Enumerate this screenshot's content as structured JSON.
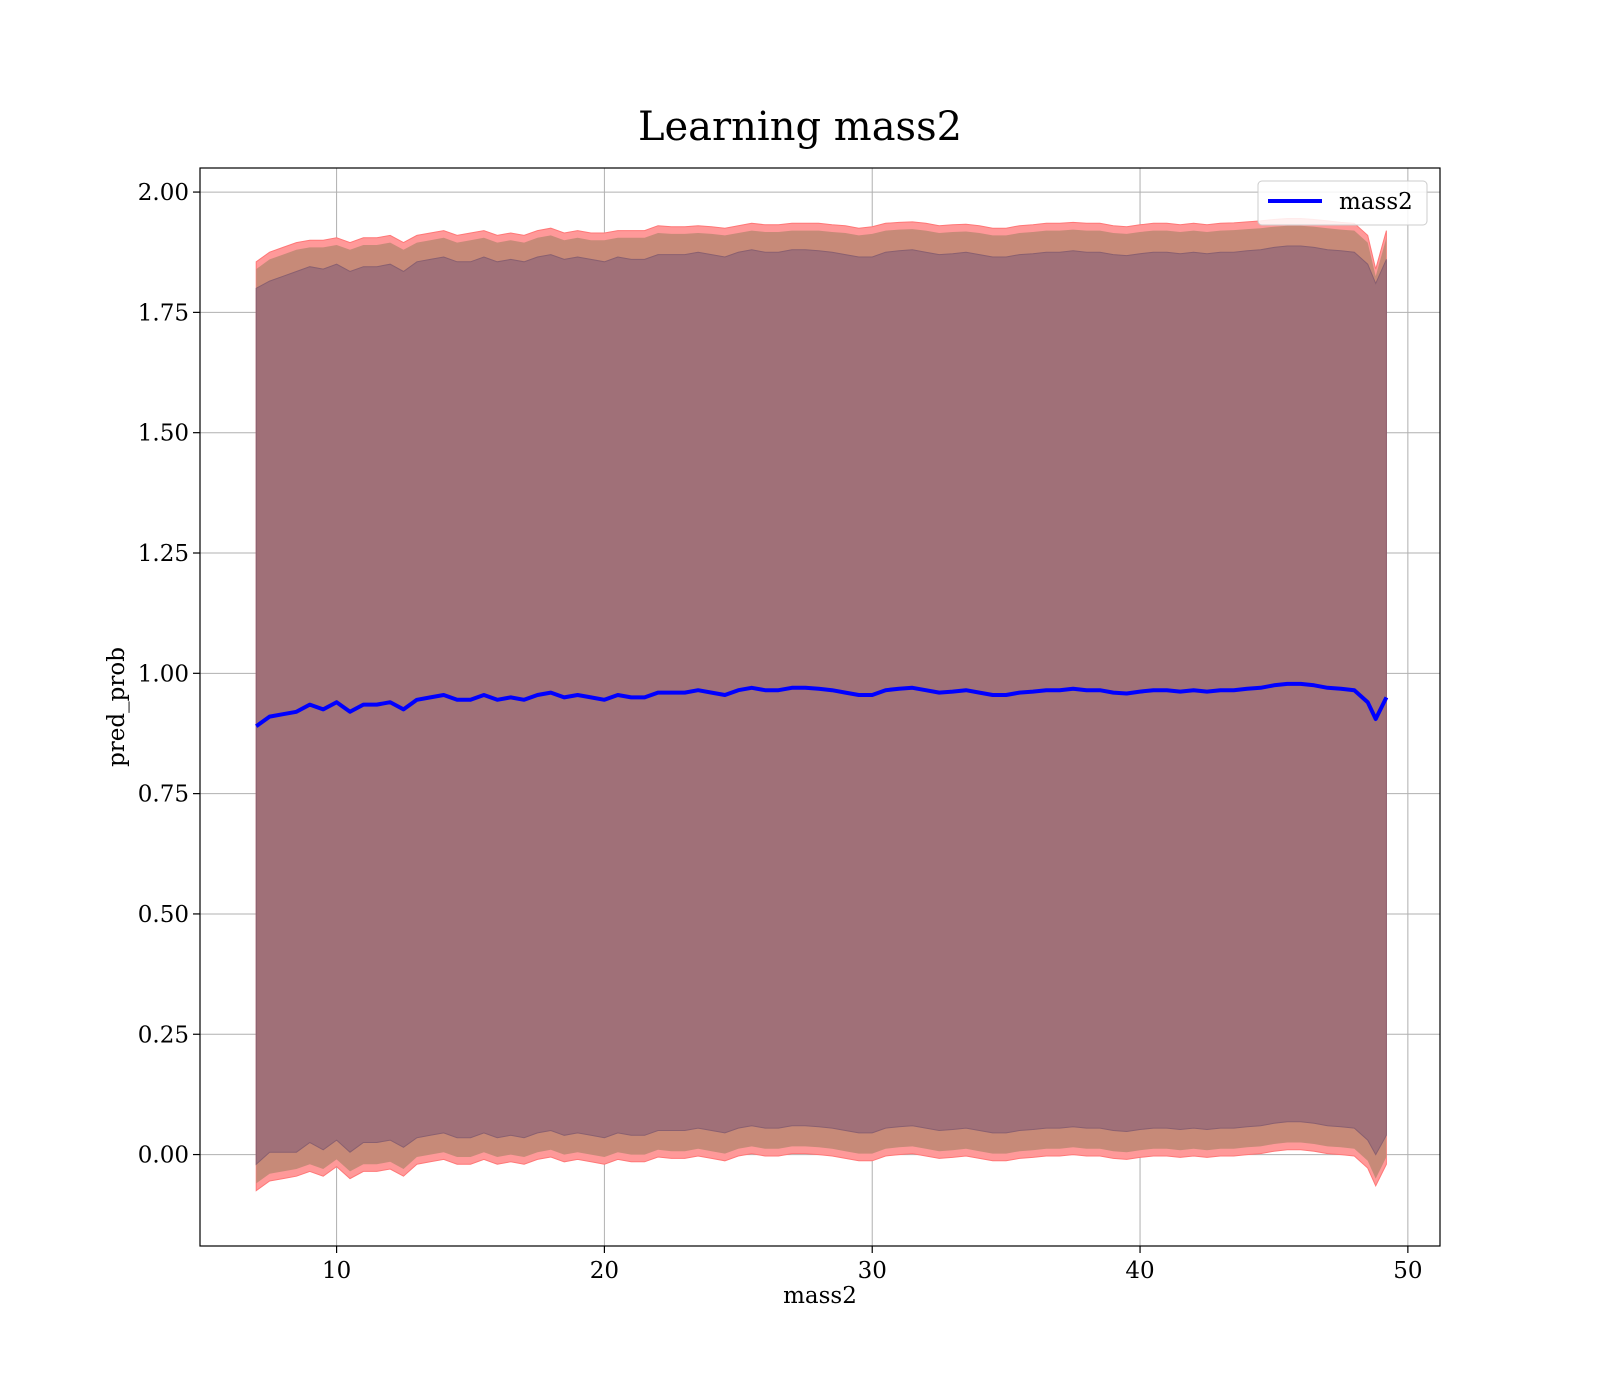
{
  "chart_data": {
    "type": "line",
    "title": "Learning mass2",
    "xlabel": "mass2",
    "ylabel": "pred_prob",
    "xlim": [
      4.9,
      51.2
    ],
    "ylim": [
      -0.19,
      2.05
    ],
    "xticks": [
      10,
      20,
      30,
      40,
      50
    ],
    "xtick_labels": [
      "10",
      "20",
      "30",
      "40",
      "50"
    ],
    "yticks": [
      0.0,
      0.25,
      0.5,
      0.75,
      1.0,
      1.25,
      1.5,
      1.75,
      2.0
    ],
    "ytick_labels": [
      "0.00",
      "0.25",
      "0.50",
      "0.75",
      "1.00",
      "1.25",
      "1.50",
      "1.75",
      "2.00"
    ],
    "grid": true,
    "legend_position": "top-right",
    "series": [
      {
        "name": "mass2",
        "color": "#0000ff",
        "x": [
          7.0,
          7.5,
          8.0,
          8.5,
          9.0,
          9.5,
          10.0,
          10.5,
          11.0,
          11.5,
          12.0,
          12.5,
          13.0,
          13.5,
          14.0,
          14.5,
          15.0,
          15.5,
          16.0,
          16.5,
          17.0,
          17.5,
          18.0,
          18.5,
          19.0,
          19.5,
          20.0,
          20.5,
          21.0,
          21.5,
          22.0,
          22.5,
          23.0,
          23.5,
          24.0,
          24.5,
          25.0,
          25.5,
          26.0,
          26.5,
          27.0,
          27.5,
          28.0,
          28.5,
          29.0,
          29.5,
          30.0,
          30.5,
          31.0,
          31.5,
          32.0,
          32.5,
          33.0,
          33.5,
          34.0,
          34.5,
          35.0,
          35.5,
          36.0,
          36.5,
          37.0,
          37.5,
          38.0,
          38.5,
          39.0,
          39.5,
          40.0,
          40.5,
          41.0,
          41.5,
          42.0,
          42.5,
          43.0,
          43.5,
          44.0,
          44.5,
          45.0,
          45.5,
          46.0,
          46.5,
          47.0,
          47.5,
          48.0,
          48.5,
          48.8,
          49.2
        ],
        "y": [
          0.89,
          0.91,
          0.915,
          0.92,
          0.935,
          0.925,
          0.94,
          0.92,
          0.935,
          0.935,
          0.94,
          0.925,
          0.945,
          0.95,
          0.955,
          0.945,
          0.945,
          0.955,
          0.945,
          0.95,
          0.945,
          0.955,
          0.96,
          0.95,
          0.955,
          0.95,
          0.945,
          0.955,
          0.95,
          0.95,
          0.96,
          0.96,
          0.96,
          0.965,
          0.96,
          0.955,
          0.965,
          0.97,
          0.965,
          0.965,
          0.97,
          0.97,
          0.968,
          0.965,
          0.96,
          0.955,
          0.955,
          0.965,
          0.968,
          0.97,
          0.965,
          0.96,
          0.962,
          0.965,
          0.96,
          0.955,
          0.955,
          0.96,
          0.962,
          0.965,
          0.965,
          0.968,
          0.965,
          0.965,
          0.96,
          0.958,
          0.962,
          0.965,
          0.965,
          0.962,
          0.965,
          0.962,
          0.965,
          0.965,
          0.968,
          0.97,
          0.975,
          0.978,
          0.978,
          0.975,
          0.97,
          0.968,
          0.965,
          0.94,
          0.905,
          0.95
        ],
        "band_outer_upper": [
          1.855,
          1.875,
          1.885,
          1.895,
          1.9,
          1.9,
          1.905,
          1.895,
          1.905,
          1.905,
          1.91,
          1.895,
          1.91,
          1.915,
          1.92,
          1.91,
          1.915,
          1.92,
          1.91,
          1.915,
          1.91,
          1.92,
          1.925,
          1.915,
          1.92,
          1.915,
          1.915,
          1.92,
          1.92,
          1.92,
          1.93,
          1.928,
          1.928,
          1.93,
          1.928,
          1.925,
          1.93,
          1.935,
          1.932,
          1.932,
          1.935,
          1.935,
          1.935,
          1.932,
          1.93,
          1.925,
          1.928,
          1.935,
          1.937,
          1.938,
          1.935,
          1.93,
          1.932,
          1.933,
          1.93,
          1.925,
          1.925,
          1.93,
          1.932,
          1.935,
          1.935,
          1.937,
          1.935,
          1.935,
          1.93,
          1.928,
          1.932,
          1.935,
          1.935,
          1.932,
          1.935,
          1.932,
          1.935,
          1.936,
          1.938,
          1.94,
          1.943,
          1.945,
          1.945,
          1.943,
          1.94,
          1.937,
          1.935,
          1.91,
          1.84,
          1.92
        ],
        "band_inner_upper": [
          1.8,
          1.815,
          1.825,
          1.835,
          1.845,
          1.84,
          1.85,
          1.835,
          1.845,
          1.845,
          1.85,
          1.835,
          1.855,
          1.86,
          1.865,
          1.855,
          1.855,
          1.865,
          1.855,
          1.86,
          1.855,
          1.865,
          1.87,
          1.86,
          1.865,
          1.86,
          1.855,
          1.865,
          1.86,
          1.86,
          1.87,
          1.87,
          1.87,
          1.875,
          1.87,
          1.865,
          1.875,
          1.88,
          1.875,
          1.875,
          1.88,
          1.88,
          1.878,
          1.875,
          1.87,
          1.865,
          1.865,
          1.875,
          1.878,
          1.88,
          1.875,
          1.87,
          1.872,
          1.875,
          1.87,
          1.865,
          1.865,
          1.87,
          1.872,
          1.875,
          1.875,
          1.878,
          1.875,
          1.875,
          1.87,
          1.868,
          1.872,
          1.875,
          1.875,
          1.872,
          1.875,
          1.872,
          1.875,
          1.875,
          1.878,
          1.88,
          1.885,
          1.888,
          1.888,
          1.885,
          1.88,
          1.878,
          1.875,
          1.85,
          1.81,
          1.86
        ],
        "band_inner_lower": [
          -0.02,
          0.005,
          0.005,
          0.005,
          0.025,
          0.01,
          0.03,
          0.005,
          0.025,
          0.025,
          0.03,
          0.015,
          0.035,
          0.04,
          0.045,
          0.035,
          0.035,
          0.045,
          0.035,
          0.04,
          0.035,
          0.045,
          0.05,
          0.04,
          0.045,
          0.04,
          0.035,
          0.045,
          0.04,
          0.04,
          0.05,
          0.05,
          0.05,
          0.055,
          0.05,
          0.045,
          0.055,
          0.06,
          0.055,
          0.055,
          0.06,
          0.06,
          0.058,
          0.055,
          0.05,
          0.045,
          0.045,
          0.055,
          0.058,
          0.06,
          0.055,
          0.05,
          0.052,
          0.055,
          0.05,
          0.045,
          0.045,
          0.05,
          0.052,
          0.055,
          0.055,
          0.058,
          0.055,
          0.055,
          0.05,
          0.048,
          0.052,
          0.055,
          0.055,
          0.052,
          0.055,
          0.052,
          0.055,
          0.055,
          0.058,
          0.06,
          0.065,
          0.068,
          0.068,
          0.065,
          0.06,
          0.058,
          0.055,
          0.03,
          0.0,
          0.04
        ],
        "band_outer_lower": [
          -0.075,
          -0.055,
          -0.05,
          -0.045,
          -0.035,
          -0.045,
          -0.025,
          -0.05,
          -0.035,
          -0.035,
          -0.03,
          -0.045,
          -0.02,
          -0.015,
          -0.01,
          -0.02,
          -0.02,
          -0.01,
          -0.02,
          -0.015,
          -0.02,
          -0.01,
          -0.005,
          -0.015,
          -0.01,
          -0.015,
          -0.02,
          -0.01,
          -0.015,
          -0.015,
          -0.005,
          -0.008,
          -0.008,
          -0.003,
          -0.008,
          -0.013,
          -0.003,
          0.002,
          -0.003,
          -0.003,
          0.002,
          0.002,
          0.0,
          -0.003,
          -0.008,
          -0.013,
          -0.013,
          -0.003,
          0.0,
          0.002,
          -0.003,
          -0.008,
          -0.006,
          -0.003,
          -0.008,
          -0.013,
          -0.013,
          -0.008,
          -0.006,
          -0.003,
          -0.003,
          0.0,
          -0.003,
          -0.003,
          -0.008,
          -0.01,
          -0.006,
          -0.003,
          -0.003,
          -0.006,
          -0.003,
          -0.006,
          -0.003,
          -0.003,
          0.0,
          0.002,
          0.007,
          0.01,
          0.01,
          0.007,
          0.002,
          0.0,
          -0.003,
          -0.028,
          -0.065,
          -0.02
        ]
      }
    ],
    "band_colors": {
      "outer": "#ff9999",
      "middle": "#c78a78",
      "inner": "#a07078"
    }
  }
}
